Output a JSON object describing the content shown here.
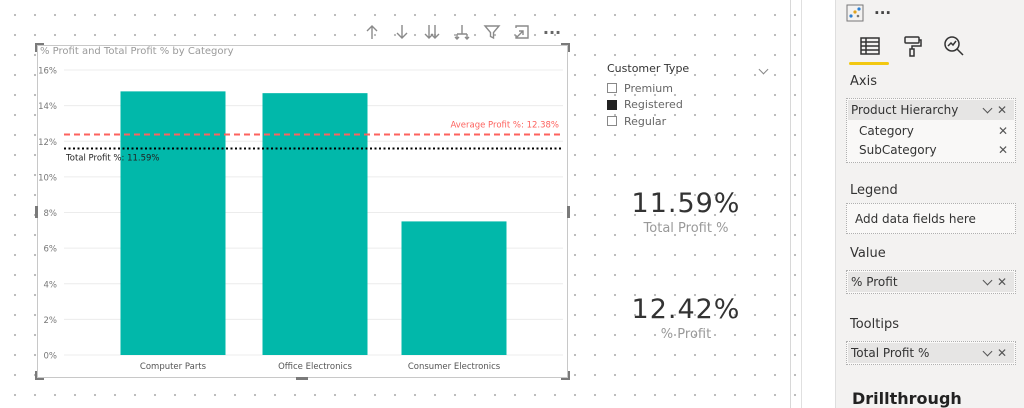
{
  "toolbar": {
    "icons": [
      "drill-up-icon",
      "drill-down-icon",
      "expand-next-level-icon",
      "expand-hierarchy-icon",
      "filter-icon",
      "focus-mode-icon",
      "more-options-icon"
    ],
    "more_label": "···"
  },
  "visual": {
    "title": "% Profit and Total Profit % by Category"
  },
  "chart_data": {
    "type": "bar",
    "title": "% Profit and Total Profit % by Category",
    "categories": [
      "Computer Parts",
      "Office Electronics",
      "Consumer Electronics"
    ],
    "series": [
      {
        "values": [
          14.8,
          14.7,
          7.5
        ]
      }
    ],
    "y_ticks": [
      "0%",
      "2%",
      "4%",
      "6%",
      "8%",
      "10%",
      "12%",
      "14%",
      "16%"
    ],
    "ylim": [
      0,
      16
    ],
    "bar_color": "#01b8aa",
    "reference_lines": [
      {
        "label": "Average Profit %: 12.38%",
        "value": 12.38,
        "color": "#fd625e",
        "style": "dashed"
      },
      {
        "label": "Total Profit %: 11.59%",
        "value": 11.59,
        "color": "#000000",
        "style": "dotted"
      }
    ],
    "grid": true
  },
  "legend": {
    "title": "Customer Type",
    "items": [
      {
        "label": "Premium",
        "checked": false
      },
      {
        "label": "Registered",
        "checked": true
      },
      {
        "label": "Regular",
        "checked": false
      }
    ]
  },
  "cards": [
    {
      "value": "11.59%",
      "label": "Total Profit %"
    },
    {
      "value": "12.42%",
      "label": "% Profit"
    }
  ],
  "panel": {
    "more_label": "···",
    "sections": {
      "axis": "Axis",
      "legend": "Legend",
      "value": "Value",
      "tooltips": "Tooltips",
      "drillthrough": "Drillthrough"
    },
    "axis_field": "Product Hierarchy",
    "axis_sub_fields": [
      "Category",
      "SubCategory"
    ],
    "legend_placeholder": "Add data fields here",
    "value_field": "% Profit",
    "tooltip_field": "Total Profit %",
    "accent_color": "#f2c811"
  }
}
